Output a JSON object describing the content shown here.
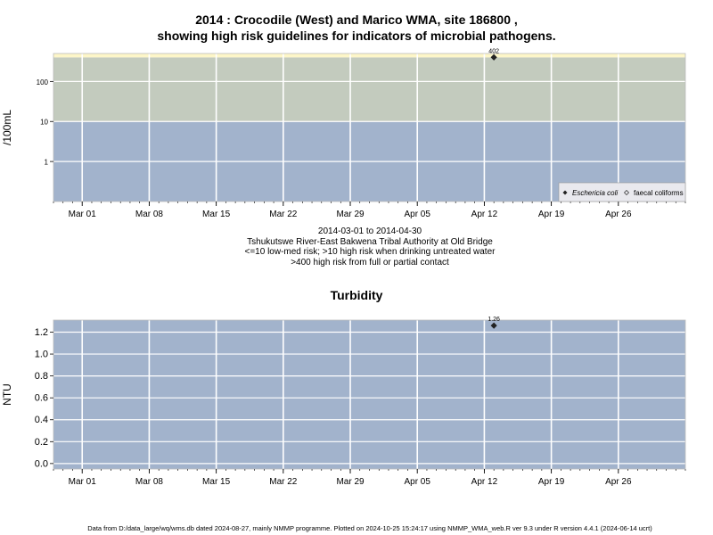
{
  "title_line1": "2014 : Crocodile (West) and Marico WMA, site 186800 ,",
  "title_line2": "showing high risk guidelines for indicators of microbial pathogens.",
  "subtitle": {
    "date_range": "2014-03-01 to 2014-04-30",
    "location": "Tshukutswe River-East Bakwena Tribal Authority at Old Bridge",
    "risk_note1": "<=10 low-med risk; >10 high risk when drinking untreated water",
    "risk_note2": ">400 high risk from full or partial contact"
  },
  "footer": "Data from D:/data_large/wq/wms.db dated 2024-08-27, mainly NMMP programme. Plotted on 2024-10-25 15:24:17 using NMMP_WMA_web.R ver 9.3 under R version 4.4.1 (2024-06-14 ucrt)",
  "colors": {
    "band_low": "#a2b3cc",
    "band_high": "#c3cbbe",
    "band_contact": "#fdf6c8",
    "grid": "#ffffff",
    "point": "#222222"
  },
  "chart_data": [
    {
      "type": "scatter",
      "title": "",
      "ylabel": "/100mL",
      "yscale": "log",
      "ylim": [
        0.1,
        500
      ],
      "xlim": [
        "2014-02-26",
        "2014-05-03"
      ],
      "yticks": [
        {
          "value": 1,
          "label": "1"
        },
        {
          "value": 10,
          "label": "10"
        },
        {
          "value": 100,
          "label": "100"
        }
      ],
      "xticks": [
        {
          "date": "2014-03-01",
          "label": "Mar 01"
        },
        {
          "date": "2014-03-08",
          "label": "Mar 08"
        },
        {
          "date": "2014-03-15",
          "label": "Mar 15"
        },
        {
          "date": "2014-03-22",
          "label": "Mar 22"
        },
        {
          "date": "2014-03-29",
          "label": "Mar 29"
        },
        {
          "date": "2014-04-05",
          "label": "Apr 05"
        },
        {
          "date": "2014-04-12",
          "label": "Apr 12"
        },
        {
          "date": "2014-04-19",
          "label": "Apr 19"
        },
        {
          "date": "2014-04-26",
          "label": "Apr 26"
        }
      ],
      "bands": [
        {
          "from": 0.1,
          "to": 10,
          "color": "#a2b3cc"
        },
        {
          "from": 10,
          "to": 400,
          "color": "#c3cbbe"
        },
        {
          "from": 400,
          "to": 500,
          "color": "#fdf6c8"
        }
      ],
      "series": [
        {
          "name": "Eschericia coli",
          "marker": "filled-diamond",
          "points": [
            {
              "date": "2014-04-13",
              "value": 402,
              "label": "402"
            }
          ]
        },
        {
          "name": "faecal coliforms",
          "marker": "open-diamond",
          "points": []
        }
      ],
      "legend": "bottom-right"
    },
    {
      "type": "scatter",
      "title": "Turbidity",
      "ylabel": "NTU",
      "yscale": "linear",
      "ylim": [
        -0.05,
        1.31
      ],
      "xlim": [
        "2014-02-26",
        "2014-05-03"
      ],
      "yticks": [
        {
          "value": 0,
          "label": "0.0"
        },
        {
          "value": 0.2,
          "label": "0.2"
        },
        {
          "value": 0.4,
          "label": "0.4"
        },
        {
          "value": 0.6,
          "label": "0.6"
        },
        {
          "value": 0.8,
          "label": "0.8"
        },
        {
          "value": 1.0,
          "label": "1.0"
        },
        {
          "value": 1.2,
          "label": "1.2"
        }
      ],
      "xticks": [
        {
          "date": "2014-03-01",
          "label": "Mar 01"
        },
        {
          "date": "2014-03-08",
          "label": "Mar 08"
        },
        {
          "date": "2014-03-15",
          "label": "Mar 15"
        },
        {
          "date": "2014-03-22",
          "label": "Mar 22"
        },
        {
          "date": "2014-03-29",
          "label": "Mar 29"
        },
        {
          "date": "2014-04-05",
          "label": "Apr 05"
        },
        {
          "date": "2014-04-12",
          "label": "Apr 12"
        },
        {
          "date": "2014-04-19",
          "label": "Apr 19"
        },
        {
          "date": "2014-04-26",
          "label": "Apr 26"
        }
      ],
      "series": [
        {
          "name": "",
          "marker": "filled-diamond",
          "points": [
            {
              "date": "2014-04-13",
              "value": 1.26,
              "label": "1.26"
            }
          ]
        }
      ]
    }
  ]
}
